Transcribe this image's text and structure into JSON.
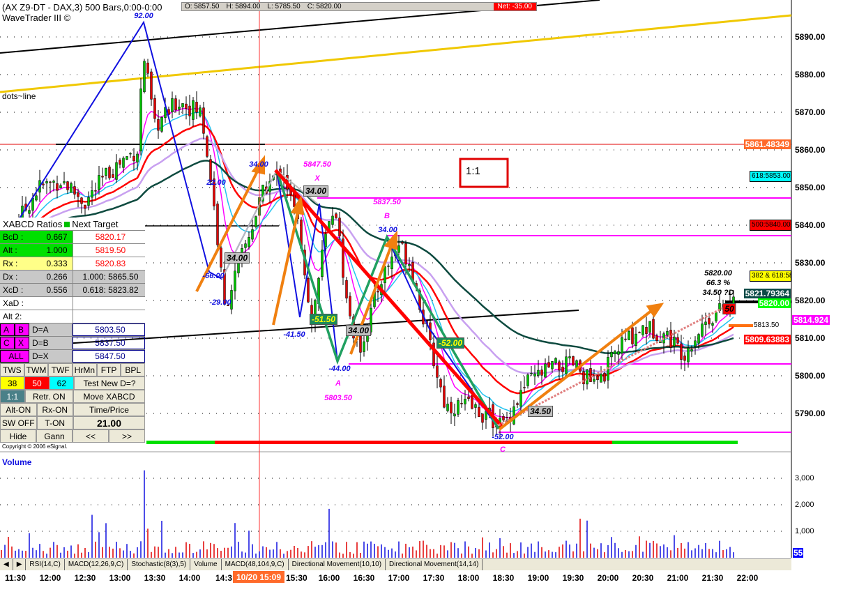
{
  "header": {
    "title": "(AX Z9-DT - DAX,3) 500 Bars,0:00-0:00",
    "subtitle": "WaveTrader III ©",
    "study_label": "dots~line",
    "ratio_box": "1:1"
  },
  "ohlc": {
    "open": "O: 5857.50",
    "high": "H: 5894.00",
    "low": "L: 5785.50",
    "close": "C: 5820.00",
    "net": "Net: -35.00"
  },
  "price_axis": {
    "ticks": [
      "5890.00",
      "5880.00",
      "5870.00",
      "5860.00",
      "5850.00",
      "5840.00",
      "5830.00",
      "5820.00",
      "5810.00",
      "5800.00",
      "5790.00"
    ],
    "tick_values": [
      5890,
      5880,
      5870,
      5860,
      5850,
      5840,
      5830,
      5820,
      5810,
      5800,
      5790
    ]
  },
  "price_tags": [
    {
      "text": "5861.48349",
      "price": 5861.5,
      "bg": "#ff6a2a",
      "fg": "#ffffff"
    },
    {
      "text": "5821.79364",
      "price": 5821.8,
      "bg": "#0d4a47",
      "fg": "#ffffff"
    },
    {
      "text": "5820.00",
      "price": 5819.3,
      "bg": "#00ff00",
      "fg": "#ffffff"
    },
    {
      "text": "5814.924",
      "price": 5814.9,
      "bg": "#ff00ff",
      "fg": "#ffffff"
    },
    {
      "text": "5809.63883",
      "price": 5809.6,
      "bg": "#ff0000",
      "fg": "#ffffff"
    }
  ],
  "fib_tags": [
    {
      "text": "618:5853.00",
      "price": 5853,
      "bg": "#00ffff"
    },
    {
      "text": "500:5840.00",
      "price": 5840,
      "bg": "#ff0000"
    },
    {
      "text": "382 & 618:58",
      "price": 5826.5,
      "bg": "#ffff00"
    }
  ],
  "annotations": {
    "top": "92.00",
    "a1": "22.00",
    "a2": "-66.00",
    "a3": "-29.00",
    "a4": "34.00",
    "a5": "34.00",
    "a6": "5847.50",
    "x": "X",
    "a7": "34.00",
    "a8": "5837.50",
    "b": "B",
    "a9": "34.00",
    "a10": "-41.50",
    "a11": "-51.50",
    "a12": "34.00",
    "a13": "-44.00",
    "a": "A",
    "a14": "5803.50",
    "a15": "-52.00",
    "a16": "34.50",
    "a17": "-52.00",
    "c": "C",
    "d1": "5820.00",
    "d2": "66.3 %",
    "d3": "34.50 ?D",
    "d4": "50",
    "d5": "5813.50"
  },
  "panel": {
    "title": "XABCD Ratios",
    "title2": "Next Target",
    "rows": [
      {
        "label": "BcD :",
        "value": "0.667",
        "target": "5820.17"
      },
      {
        "label": "Alt  :",
        "value": "1.000",
        "target": "5819.50"
      },
      {
        "label": "Rx  :",
        "value": "0.333",
        "target": "5820.83"
      },
      {
        "label": "Dx  :",
        "value": "0.266",
        "target": "1.000: 5865.50"
      },
      {
        "label": "XcD :",
        "value": "0.556",
        "target": "0.618: 5823.82"
      },
      {
        "label": "XaD :",
        "value": "",
        "target": ""
      },
      {
        "label": "Alt 2:",
        "value": "",
        "target": ""
      }
    ],
    "points": [
      {
        "b1": "A",
        "b2": "B",
        "eq": "D=A",
        "val": "5803.50"
      },
      {
        "b1": "C",
        "b2": "X",
        "eq": "D=B",
        "val": "5837.50"
      },
      {
        "b1": "ALL",
        "b2": "",
        "eq": "D=X",
        "val": "5847.50"
      }
    ],
    "buttons": {
      "tws": "TWS",
      "twm": "TWM",
      "twf": "TWF",
      "hrmn": "HrMn",
      "ftp": "FTP",
      "bpl": "BPL",
      "f38": "38",
      "f50": "50",
      "f62": "62",
      "test": "Test New D=?",
      "r11": "1:1",
      "retr": "Retr. ON",
      "move": "Move XABCD",
      "alt": "Alt-ON",
      "rx": "Rx-ON",
      "tp": "Time/Price",
      "sw": "SW OFF",
      "ton": "T-ON",
      "val": "21.00",
      "hide": "Hide",
      "gann": "Gann",
      "prev": "<<",
      "next": ">>"
    },
    "copyright": "Copyright © 2006 eSignal."
  },
  "volume": {
    "label": "Volume",
    "ticks": [
      "3,000",
      "2,000",
      "1,000"
    ],
    "tick_values": [
      3000,
      2000,
      1000
    ],
    "badge": "55"
  },
  "tabs": [
    "RSI(14,C)",
    "MACD(12,26,9,C)",
    "Stochastic(8(3),5)",
    "Volume",
    "MACD(48,104,9,C)",
    "Directional Movement(10,10)",
    "Directional Movement(14,14)"
  ],
  "time_axis": {
    "labels": [
      "11:30",
      "12:00",
      "12:30",
      "13:00",
      "13:30",
      "14:00",
      "14:3",
      "",
      "15:30",
      "16:00",
      "16:30",
      "17:00",
      "17:30",
      "18:00",
      "18:30",
      "19:00",
      "19:30",
      "20:00",
      "20:30",
      "21:00",
      "21:30",
      "22:00"
    ],
    "cursor": "10/20 15:09"
  },
  "price_path": [
    [
      "11:15",
      5838
    ],
    [
      "11:30",
      5840
    ],
    [
      "11:50",
      5850
    ],
    [
      "12:10",
      5852
    ],
    [
      "12:30",
      5846
    ],
    [
      "12:50",
      5854
    ],
    [
      "13:05",
      5858
    ],
    [
      "13:15",
      5860
    ],
    [
      "13:20",
      5886
    ],
    [
      "13:30",
      5866
    ],
    [
      "13:50",
      5873
    ],
    [
      "14:10",
      5870
    ],
    [
      "14:20",
      5848
    ],
    [
      "14:30",
      5818
    ],
    [
      "14:45",
      5832
    ],
    [
      "15:05",
      5850
    ],
    [
      "15:20",
      5855
    ],
    [
      "15:35",
      5838
    ],
    [
      "15:45",
      5814
    ],
    [
      "15:55",
      5834
    ],
    [
      "16:05",
      5846
    ],
    [
      "16:15",
      5820
    ],
    [
      "16:25",
      5806
    ],
    [
      "16:45",
      5826
    ],
    [
      "17:00",
      5835
    ],
    [
      "17:10",
      5830
    ],
    [
      "17:25",
      5810
    ],
    [
      "17:40",
      5792
    ],
    [
      "18:00",
      5792
    ],
    [
      "18:30",
      5787
    ],
    [
      "18:50",
      5798
    ],
    [
      "19:10",
      5802
    ],
    [
      "19:30",
      5803
    ],
    [
      "19:50",
      5797
    ],
    [
      "20:10",
      5808
    ],
    [
      "20:30",
      5813
    ],
    [
      "20:50",
      5811
    ],
    [
      "21:05",
      5806
    ],
    [
      "21:25",
      5815
    ],
    [
      "21:40",
      5818
    ],
    [
      "21:50",
      5820
    ]
  ],
  "colors": {
    "up": "#00c000",
    "down": "#e00000",
    "ma_red": "#ff0000",
    "ma_cyan": "#22c4f0",
    "ma_magenta": "#ff00ff",
    "ma_lavender": "#c8a0f0",
    "ma_dark": "#0d4a3f",
    "arrow": "#f08010"
  }
}
